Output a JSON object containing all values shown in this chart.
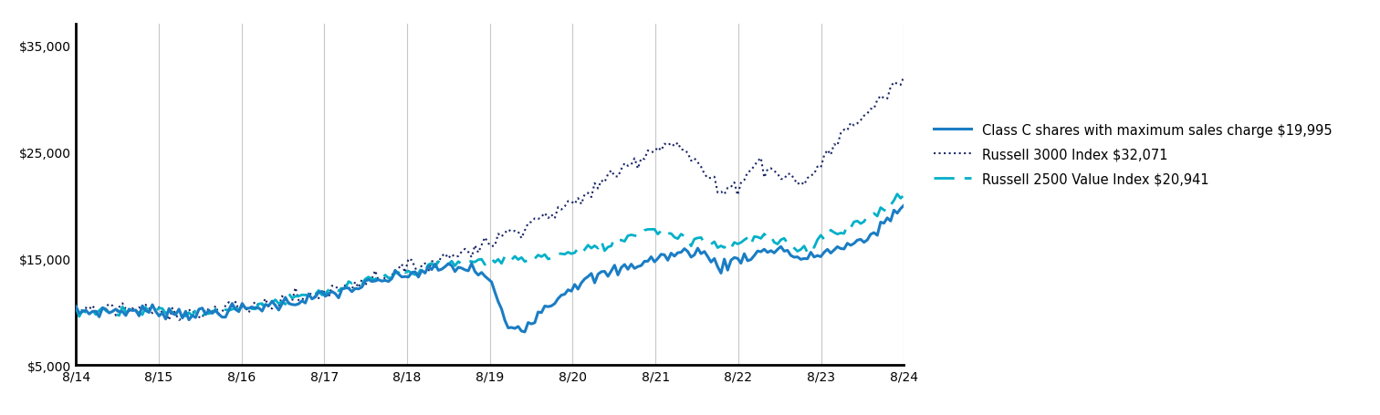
{
  "title": "",
  "x_labels": [
    "8/14",
    "8/15",
    "8/16",
    "8/17",
    "8/18",
    "8/19",
    "8/20",
    "8/21",
    "8/22",
    "8/23",
    "8/24"
  ],
  "ylim": [
    5000,
    37000
  ],
  "yticks": [
    5000,
    10000,
    15000,
    20000,
    25000,
    30000,
    35000
  ],
  "ytick_labels": [
    "$5,000",
    "",
    "$15,000",
    "",
    "$25,000",
    "",
    "$35,000"
  ],
  "color_class_c": "#1a7dc4",
  "color_russell3000": "#1a2766",
  "color_russell2500": "#00b0c8",
  "legend_labels": [
    "Class C shares with maximum sales charge $19,995",
    "Russell 3000 Index $32,071",
    "Russell 2500 Value Index $20,941"
  ],
  "background_color": "#ffffff",
  "grid_color": "#c8c8c8",
  "num_points": 250
}
